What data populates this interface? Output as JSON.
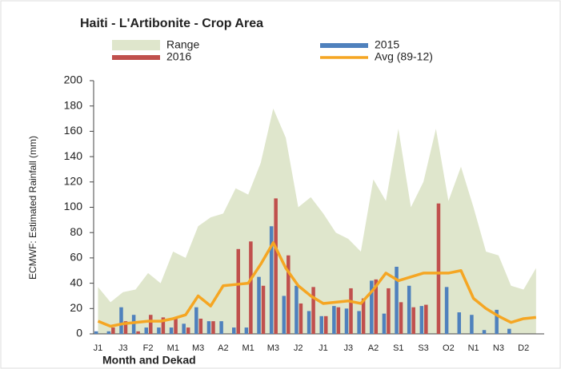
{
  "chart_data": {
    "type": "bar_line_area",
    "title": "Haiti - L'Artibonite - Crop Area",
    "y_label": "ECMWF: Estimated Rainfall (mm)",
    "x_label": "Month and Dekad",
    "categories": [
      "J1",
      null,
      "J3",
      null,
      "F2",
      null,
      "M1",
      null,
      "M3",
      null,
      "A2",
      null,
      "M1",
      null,
      "M3",
      null,
      "J2",
      null,
      "J1",
      null,
      "J3",
      null,
      "A2",
      null,
      "S1",
      null,
      "S3",
      null,
      "O2",
      null,
      "N1",
      null,
      "N3",
      null,
      "D2",
      null
    ],
    "ylim": [
      0,
      200
    ],
    "yticks": [
      0,
      20,
      40,
      60,
      80,
      100,
      120,
      140,
      160,
      180,
      200
    ],
    "series": [
      {
        "name": "Range",
        "kind": "area",
        "color": "#dfe6cc",
        "values": [
          37,
          25,
          33,
          35,
          48,
          40,
          65,
          60,
          85,
          92,
          95,
          115,
          110,
          135,
          178,
          155,
          100,
          108,
          95,
          80,
          75,
          65,
          122,
          105,
          162,
          100,
          120,
          162,
          105,
          132,
          100,
          65,
          62,
          38,
          35,
          52
        ]
      },
      {
        "name": "2015",
        "kind": "bar",
        "color": "#4f81bd",
        "values": [
          2,
          2,
          21,
          15,
          5,
          5,
          5,
          8,
          21,
          10,
          10,
          5,
          5,
          45,
          85,
          30,
          38,
          18,
          14,
          22,
          20,
          18,
          42,
          16,
          53,
          38,
          22,
          0,
          37,
          17,
          15,
          3,
          19,
          4,
          0,
          0
        ]
      },
      {
        "name": "2016",
        "kind": "bar",
        "color": "#c0504d",
        "values": [
          0,
          5,
          10,
          2,
          15,
          13,
          12,
          5,
          12,
          10,
          0,
          67,
          73,
          38,
          107,
          62,
          24,
          37,
          14,
          21,
          36,
          28,
          43,
          36,
          25,
          21,
          23,
          103,
          0,
          0,
          0,
          0,
          0,
          0,
          0,
          0
        ]
      },
      {
        "name": "Avg (89-12)",
        "kind": "line",
        "color": "#f5a623",
        "values": [
          10,
          6,
          8,
          9,
          10,
          10,
          12,
          15,
          30,
          22,
          38,
          39,
          40,
          55,
          72,
          52,
          38,
          30,
          24,
          25,
          26,
          24,
          35,
          48,
          42,
          45,
          48,
          48,
          48,
          50,
          28,
          20,
          14,
          9,
          12,
          13
        ]
      }
    ]
  }
}
